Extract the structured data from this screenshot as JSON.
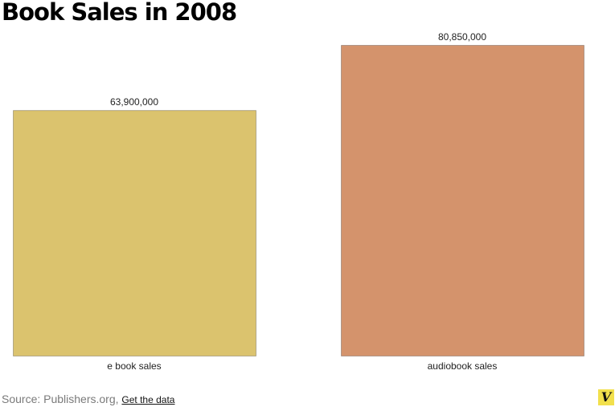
{
  "title": "Book Sales in 2008",
  "source": {
    "text": "Source: Publishers.org,",
    "link": "Get the data"
  },
  "logo": {
    "text": "V",
    "color": "#f2e04c"
  },
  "chart_data": {
    "type": "bar",
    "title": "Book Sales in 2008",
    "categories": [
      "e book sales",
      "audiobook sales"
    ],
    "values": [
      63900000,
      80850000
    ],
    "value_labels": [
      "63,900,000",
      "80,850,000"
    ],
    "colors": [
      "#dbc36e",
      "#d4936c"
    ],
    "xlabel": "",
    "ylabel": "",
    "grid": false
  }
}
